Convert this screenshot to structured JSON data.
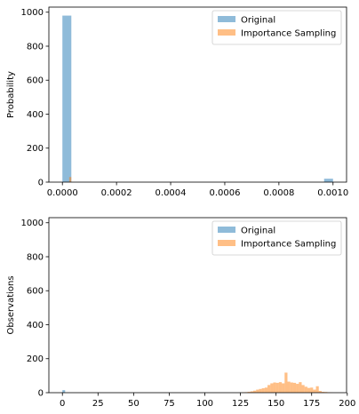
{
  "colors": {
    "original": "#1f77b4",
    "importance": "#ff7f0e",
    "axis": "#000000",
    "legend_border": "#cccccc"
  },
  "chart_data": [
    {
      "type": "bar",
      "title": "",
      "xlabel": "",
      "ylabel": "Probability",
      "xlim": [
        -5e-05,
        0.00105
      ],
      "ylim": [
        0,
        1030
      ],
      "xticks": [
        0.0,
        0.0002,
        0.0004,
        0.0006,
        0.0008,
        0.001
      ],
      "xtick_labels": [
        "0.0000",
        "0.0002",
        "0.0004",
        "0.0006",
        "0.0008",
        "0.0010"
      ],
      "yticks": [
        0,
        200,
        400,
        600,
        800,
        1000
      ],
      "ytick_labels": [
        "0",
        "200",
        "400",
        "600",
        "800",
        "1000"
      ],
      "legend": {
        "location": "top-right",
        "entries": [
          "Original",
          "Importance Sampling"
        ]
      },
      "series": [
        {
          "name": "Original",
          "alpha": 0.5,
          "bars": [
            {
              "x0": 0.0,
              "x1": 3.3e-05,
              "value": 980
            },
            {
              "x0": 0.000967,
              "x1": 0.001,
              "value": 20
            }
          ]
        },
        {
          "name": "Importance Sampling",
          "alpha": 0.5,
          "bars": [
            {
              "x0": 2.5e-05,
              "x1": 3.3e-05,
              "value": 30
            }
          ]
        }
      ]
    },
    {
      "type": "bar",
      "title": "",
      "xlabel": "",
      "ylabel": "Observations",
      "xlim": [
        -9.5,
        199.5
      ],
      "ylim": [
        0,
        1030
      ],
      "xticks": [
        0,
        25,
        50,
        75,
        100,
        125,
        150,
        175,
        200
      ],
      "xtick_labels": [
        "0",
        "25",
        "50",
        "75",
        "100",
        "125",
        "150",
        "175",
        "200"
      ],
      "yticks": [
        0,
        200,
        400,
        600,
        800,
        1000
      ],
      "ytick_labels": [
        "0",
        "200",
        "400",
        "600",
        "800",
        "1000"
      ],
      "legend": {
        "location": "top-right",
        "entries": [
          "Original",
          "Importance Sampling"
        ]
      },
      "series": [
        {
          "name": "Original",
          "alpha": 0.5,
          "bars": [
            {
              "x0": 0,
              "x1": 1.9,
              "value": 15
            }
          ]
        },
        {
          "name": "Importance Sampling",
          "alpha": 0.5,
          "bin_start": 120,
          "bin_width": 2,
          "values": [
            0,
            0,
            0,
            2,
            3,
            5,
            8,
            12,
            18,
            22,
            26,
            30,
            45,
            55,
            60,
            58,
            62,
            55,
            118,
            65,
            60,
            58,
            52,
            62,
            45,
            35,
            28,
            30,
            18,
            38,
            10,
            5,
            4,
            2,
            1,
            0
          ]
        }
      ]
    }
  ]
}
